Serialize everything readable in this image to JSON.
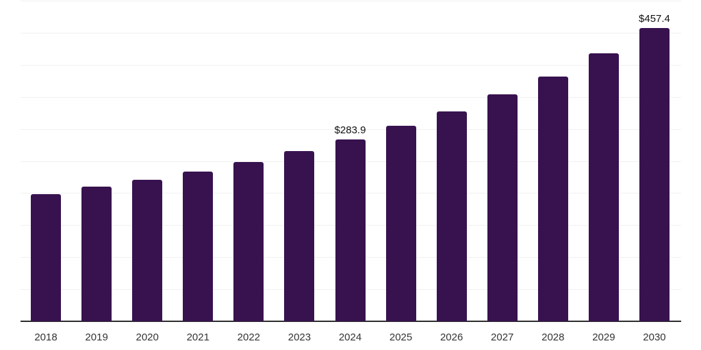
{
  "chart_data": {
    "type": "bar",
    "title": "",
    "xlabel": "",
    "ylabel": "",
    "categories": [
      "2018",
      "2019",
      "2020",
      "2021",
      "2022",
      "2023",
      "2024",
      "2025",
      "2026",
      "2027",
      "2028",
      "2029",
      "2030"
    ],
    "values": [
      198.1,
      209.9,
      220.5,
      233.4,
      248.9,
      265.2,
      283.9,
      305.0,
      327.7,
      353.5,
      382.2,
      417.7,
      457.4
    ],
    "bar_labels": [
      "",
      "",
      "",
      "",
      "",
      "",
      "$283.9",
      "",
      "",
      "",
      "",
      "",
      "$457.4"
    ],
    "labeled_points": [
      {
        "category": "2024",
        "label": "$283.9",
        "value": 283.9
      },
      {
        "category": "2030",
        "label": "$457.4",
        "value": 457.4
      }
    ],
    "ylim": [
      0,
      500
    ],
    "gridline_step": 50,
    "grid": true,
    "legend": false,
    "y_tick_labels_visible": false,
    "colors": {
      "bar": "#38124F",
      "axis_line": "#2d2d2d",
      "gridline": "#f0f0f0",
      "tick_label": "#333333",
      "value_label": "#111111",
      "background": "#ffffff"
    }
  }
}
